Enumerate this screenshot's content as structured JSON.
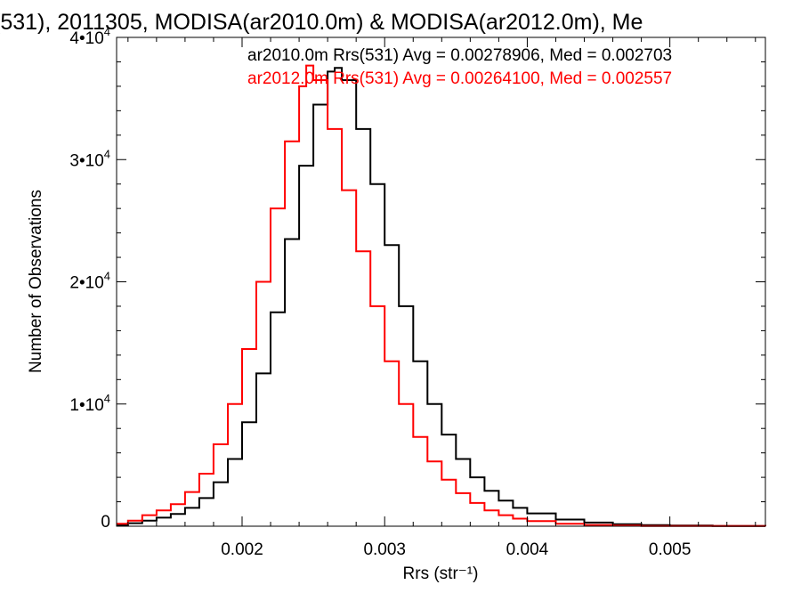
{
  "chart_data": {
    "type": "line",
    "title": "(531), 2011305, MODISA(ar2010.0m) & MODISA(ar2012.0m), Me",
    "xlabel": "Rrs (str⁻¹)",
    "ylabel": "Number of Observations",
    "xlim": [
      0.00112,
      0.00567
    ],
    "ylim": [
      0,
      40000
    ],
    "x_ticks": [
      {
        "value": 0.002,
        "label": "0.002"
      },
      {
        "value": 0.003,
        "label": "0.003"
      },
      {
        "value": 0.004,
        "label": "0.004"
      },
      {
        "value": 0.005,
        "label": "0.005"
      }
    ],
    "y_ticks": [
      {
        "value": 0,
        "label": "0"
      },
      {
        "value": 10000,
        "label": "1•10",
        "exp": "4"
      },
      {
        "value": 20000,
        "label": "2•10",
        "exp": "4"
      },
      {
        "value": 30000,
        "label": "3•10",
        "exp": "4"
      },
      {
        "value": 40000,
        "label": "4•10",
        "exp": "4"
      }
    ],
    "legend_placement": "top-right",
    "series": [
      {
        "name": "ar2010.0m Rrs(531) Avg = 0.00278906, Med = 0.002703",
        "color": "#000000",
        "x": [
          0.00112,
          0.0012,
          0.0013,
          0.0014,
          0.0015,
          0.0016,
          0.0017,
          0.0018,
          0.0019,
          0.002,
          0.0021,
          0.0022,
          0.0023,
          0.0024,
          0.0025,
          0.0026,
          0.00265,
          0.0027,
          0.0028,
          0.0029,
          0.003,
          0.0031,
          0.0032,
          0.0033,
          0.0034,
          0.0035,
          0.0036,
          0.0037,
          0.0038,
          0.0039,
          0.004,
          0.0042,
          0.0044,
          0.0046,
          0.0048,
          0.005,
          0.0053,
          0.00567
        ],
        "y": [
          100,
          250,
          450,
          700,
          1000,
          1500,
          2300,
          3600,
          5500,
          8500,
          12500,
          17500,
          23500,
          29500,
          34500,
          37200,
          37500,
          36500,
          32500,
          28000,
          23000,
          18000,
          13500,
          10000,
          7500,
          5500,
          4000,
          2900,
          2100,
          1500,
          1050,
          550,
          300,
          160,
          90,
          50,
          20,
          0
        ]
      },
      {
        "name": "ar2012.0m Rrs(531) Avg = 0.00264100, Med = 0.002557",
        "color": "#ff0000",
        "x": [
          0.00112,
          0.0012,
          0.0013,
          0.0014,
          0.0015,
          0.0016,
          0.0017,
          0.0018,
          0.0019,
          0.002,
          0.0021,
          0.0022,
          0.0023,
          0.0024,
          0.00245,
          0.0025,
          0.0026,
          0.0027,
          0.0028,
          0.0029,
          0.003,
          0.0031,
          0.0032,
          0.0033,
          0.0034,
          0.0035,
          0.0036,
          0.0037,
          0.0038,
          0.0039,
          0.004,
          0.0042,
          0.0044,
          0.0046,
          0.0048,
          0.00567
        ],
        "y": [
          200,
          450,
          900,
          1300,
          1800,
          2800,
          4300,
          6700,
          10000,
          14500,
          20000,
          26000,
          31500,
          36000,
          37700,
          36500,
          32500,
          27500,
          22500,
          18000,
          13500,
          10000,
          7300,
          5300,
          3800,
          2700,
          1900,
          1300,
          900,
          620,
          420,
          200,
          100,
          50,
          25,
          0
        ]
      }
    ]
  }
}
